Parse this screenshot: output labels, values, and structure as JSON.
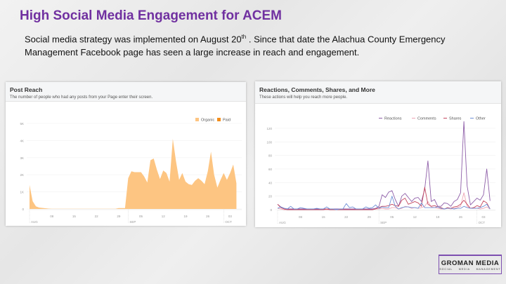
{
  "slide": {
    "title": "High Social Media Engagement for ACEM",
    "body_part1": "Social media strategy was implemented on August 20",
    "body_sup": "th",
    "body_part2": " . Since that date the Alachua County Emergency Management Facebook page has seen a large increase in reach and engagement."
  },
  "logo": {
    "main": "GROMAN MEDIA",
    "sub": [
      "SOCIAL",
      "MEDIA",
      "MANAGEMENT"
    ],
    "accent": "#7d4fb0"
  },
  "chart_data": [
    {
      "type": "area",
      "title": "Post Reach",
      "subtitle": "The number of people who had any posts from your Page enter their screen.",
      "x_start": "Aug 01",
      "x_end": "Oct 05",
      "x_tick_labels": [
        "08",
        "15",
        "22",
        "29",
        "05",
        "12",
        "19",
        "26",
        "03"
      ],
      "month_labels": [
        "AUG",
        "SEP",
        "OCT"
      ],
      "y_tick_labels": [
        "0",
        "1K",
        "2K",
        "3K",
        "4K",
        "5K"
      ],
      "ylim": [
        0,
        5000
      ],
      "grid": true,
      "legend_position": "top-right",
      "series": [
        {
          "name": "Organic",
          "color": "#fdc582",
          "values": [
            1400,
            450,
            150,
            80,
            60,
            40,
            20,
            10,
            10,
            10,
            10,
            10,
            10,
            10,
            10,
            10,
            10,
            10,
            10,
            10,
            10,
            10,
            10,
            10,
            10,
            10,
            10,
            10,
            50,
            50,
            50,
            1800,
            2200,
            2150,
            2150,
            2150,
            1900,
            1550,
            2850,
            2950,
            2300,
            1750,
            2250,
            2100,
            1600,
            4100,
            2800,
            1700,
            2100,
            1600,
            1450,
            1400,
            1650,
            1800,
            1650,
            1450,
            2200,
            3350,
            2000,
            1250,
            1700,
            2100,
            1700,
            2100,
            2600,
            1500
          ]
        },
        {
          "name": "Paid",
          "color": "#f38e1c",
          "values": []
        }
      ]
    },
    {
      "type": "line",
      "title": "Reactions, Comments, Shares, and More",
      "subtitle": "These actions will help you reach more people.",
      "x_start": "Aug 01",
      "x_end": "Oct 05",
      "x_tick_labels": [
        "08",
        "15",
        "22",
        "29",
        "05",
        "12",
        "19",
        "26",
        "03"
      ],
      "month_labels": [
        "AUG",
        "SEP",
        "OCT"
      ],
      "y_tick_labels": [
        "0",
        "20",
        "40",
        "60",
        "80",
        "100",
        "120"
      ],
      "ylim": [
        0,
        130
      ],
      "grid": true,
      "legend_position": "top-right",
      "series": [
        {
          "name": "Reactions",
          "color": "#8e5ea8",
          "values": [
            8,
            4,
            2,
            1,
            1,
            1,
            1,
            1,
            1,
            1,
            1,
            1,
            1,
            1,
            1,
            1,
            1,
            1,
            1,
            1,
            1,
            1,
            1,
            1,
            1,
            1,
            1,
            1,
            1,
            1,
            2,
            5,
            22,
            18,
            26,
            28,
            15,
            5,
            20,
            24,
            18,
            12,
            17,
            18,
            12,
            30,
            72,
            12,
            15,
            5,
            5,
            10,
            9,
            5,
            12,
            15,
            25,
            130,
            35,
            7,
            12,
            17,
            14,
            22,
            60,
            13
          ]
        },
        {
          "name": "Comments",
          "color": "#eda5b4",
          "values": [
            2,
            1,
            0,
            0,
            0,
            0,
            0,
            0,
            0,
            0,
            0,
            0,
            0,
            0,
            0,
            0,
            0,
            0,
            0,
            0,
            0,
            0,
            0,
            0,
            0,
            0,
            0,
            0,
            0,
            0,
            1,
            1,
            2,
            1,
            1,
            3,
            3,
            1,
            2,
            5,
            4,
            2,
            3,
            2,
            3,
            5,
            12,
            4,
            3,
            2,
            1,
            1,
            2,
            1,
            2,
            3,
            5,
            25,
            5,
            2,
            3,
            2,
            1,
            2,
            4,
            1
          ]
        },
        {
          "name": "Shares",
          "color": "#c3475f",
          "values": [
            8,
            3,
            1,
            0,
            0,
            0,
            0,
            0,
            0,
            0,
            0,
            0,
            0,
            0,
            0,
            1,
            0,
            0,
            0,
            0,
            0,
            0,
            0,
            0,
            0,
            0,
            0,
            0,
            0,
            0,
            1,
            3,
            5,
            5,
            6,
            8,
            6,
            5,
            14,
            17,
            8,
            10,
            12,
            10,
            5,
            33,
            8,
            5,
            6,
            4,
            3,
            1,
            3,
            2,
            4,
            5,
            8,
            14,
            8,
            2,
            3,
            6,
            4,
            13,
            10,
            1
          ]
        },
        {
          "name": "Other",
          "color": "#6f8fd6",
          "values": [
            2,
            4,
            2,
            1,
            5,
            1,
            1,
            3,
            2,
            1,
            1,
            1,
            2,
            1,
            1,
            4,
            1,
            1,
            0,
            1,
            1,
            9,
            3,
            4,
            1,
            1,
            1,
            4,
            2,
            3,
            7,
            2,
            4,
            3,
            3,
            20,
            5,
            1,
            3,
            4,
            4,
            3,
            3,
            2,
            10,
            3,
            3,
            3,
            3,
            4,
            2,
            1,
            2,
            2,
            1,
            2,
            2,
            5,
            3,
            2,
            2,
            2,
            3,
            5,
            8,
            1
          ]
        }
      ]
    }
  ]
}
